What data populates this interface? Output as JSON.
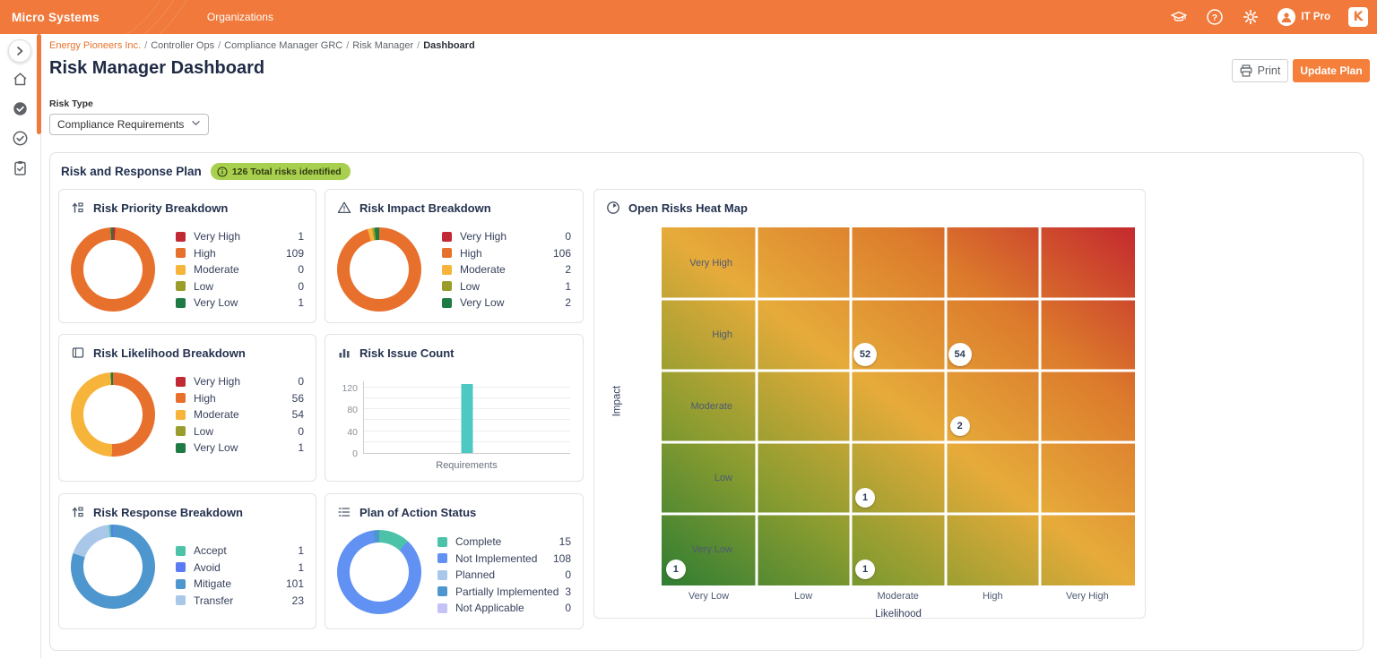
{
  "header": {
    "brand": "Micro Systems",
    "nav_organizations": "Organizations",
    "user": "IT Pro",
    "logo_letter": "K",
    "bar_color": "#F0793B"
  },
  "breadcrumb": {
    "separator": "/",
    "items": [
      {
        "label": "Energy Pioneers Inc.",
        "type": "link"
      },
      {
        "label": "Controller Ops",
        "type": "plain"
      },
      {
        "label": "Compliance Manager GRC",
        "type": "plain"
      },
      {
        "label": "Risk Manager",
        "type": "plain"
      },
      {
        "label": "Dashboard",
        "type": "current"
      }
    ]
  },
  "page": {
    "title": "Risk Manager Dashboard",
    "print_label": "Print",
    "update_plan_label": "Update Plan"
  },
  "filters": {
    "risk_type_label": "Risk Type",
    "risk_type_value": "Compliance Requirements"
  },
  "panel": {
    "title": "Risk and Response Plan",
    "badge_text": "126 Total risks identified",
    "badge_color": "#A8CF4D",
    "total_risks": 126
  },
  "cards": {
    "priority": {
      "title": "Risk Priority Breakdown",
      "type": "donut",
      "legend": [
        {
          "label": "Very High",
          "value": 1,
          "color": "#C12A34"
        },
        {
          "label": "High",
          "value": 109,
          "color": "#E8702D"
        },
        {
          "label": "Moderate",
          "value": 0,
          "color": "#F7B43B"
        },
        {
          "label": "Low",
          "value": 0,
          "color": "#9A9D2C"
        },
        {
          "label": "Very Low",
          "value": 1,
          "color": "#1E7B44"
        }
      ]
    },
    "impact": {
      "title": "Risk Impact Breakdown",
      "type": "donut",
      "legend": [
        {
          "label": "Very High",
          "value": 0,
          "color": "#C12A34"
        },
        {
          "label": "High",
          "value": 106,
          "color": "#E8702D"
        },
        {
          "label": "Moderate",
          "value": 2,
          "color": "#F7B43B"
        },
        {
          "label": "Low",
          "value": 1,
          "color": "#9A9D2C"
        },
        {
          "label": "Very Low",
          "value": 2,
          "color": "#1E7B44"
        }
      ]
    },
    "likelihood": {
      "title": "Risk Likelihood Breakdown",
      "type": "donut",
      "legend": [
        {
          "label": "Very High",
          "value": 0,
          "color": "#C12A34"
        },
        {
          "label": "High",
          "value": 56,
          "color": "#E8702D"
        },
        {
          "label": "Moderate",
          "value": 54,
          "color": "#F7B43B"
        },
        {
          "label": "Low",
          "value": 0,
          "color": "#9A9D2C"
        },
        {
          "label": "Very Low",
          "value": 1,
          "color": "#1E7B44"
        }
      ]
    },
    "issue_count": {
      "title": "Risk Issue Count",
      "type": "bar",
      "categories": [
        "Requirements"
      ],
      "values": [
        126
      ],
      "bar_color": "#4EC8C2",
      "yticks": [
        0,
        40,
        80,
        120
      ],
      "grid_step": 20,
      "ymax": 133
    },
    "response": {
      "title": "Risk Response Breakdown",
      "type": "donut",
      "draw_order": [
        2,
        3,
        0,
        1
      ],
      "legend": [
        {
          "label": "Accept",
          "value": 1,
          "color": "#4CC3A8"
        },
        {
          "label": "Avoid",
          "value": 1,
          "color": "#5B7BF5"
        },
        {
          "label": "Mitigate",
          "value": 101,
          "color": "#4E96CE"
        },
        {
          "label": "Transfer",
          "value": 23,
          "color": "#A9C7E8"
        }
      ]
    },
    "action_status": {
      "title": "Plan of Action Status",
      "type": "donut",
      "legend": [
        {
          "label": "Complete",
          "value": 15,
          "color": "#4CC3A8"
        },
        {
          "label": "Not Implemented",
          "value": 108,
          "color": "#6191F2"
        },
        {
          "label": "Planned",
          "value": 0,
          "color": "#A9C7E8"
        },
        {
          "label": "Partially Implemented",
          "value": 3,
          "color": "#4E96CE"
        },
        {
          "label": "Not Applicable",
          "value": 0,
          "color": "#C5C2F5"
        }
      ]
    },
    "heatmap": {
      "title": "Open Risks Heat Map",
      "type": "heatmap",
      "x_title": "Likelihood",
      "y_title": "Impact",
      "x_categories": [
        "Very Low",
        "Low",
        "Moderate",
        "High",
        "Very High"
      ],
      "y_categories": [
        "Very High",
        "High",
        "Moderate",
        "Low",
        "Very Low"
      ],
      "bubbles": [
        {
          "impact": "High",
          "likelihood": "Moderate",
          "value": 52
        },
        {
          "impact": "High",
          "likelihood": "High",
          "value": 54
        },
        {
          "impact": "Moderate",
          "likelihood": "High",
          "value": 2
        },
        {
          "impact": "Low",
          "likelihood": "Moderate",
          "value": 1
        },
        {
          "impact": "Very Low",
          "likelihood": "Very Low",
          "value": 1
        },
        {
          "impact": "Very Low",
          "likelihood": "Moderate",
          "value": 1
        }
      ],
      "gradient": {
        "low": "#2F7D33",
        "mid": "#E6AB3A",
        "high": "#C4292E"
      }
    }
  }
}
